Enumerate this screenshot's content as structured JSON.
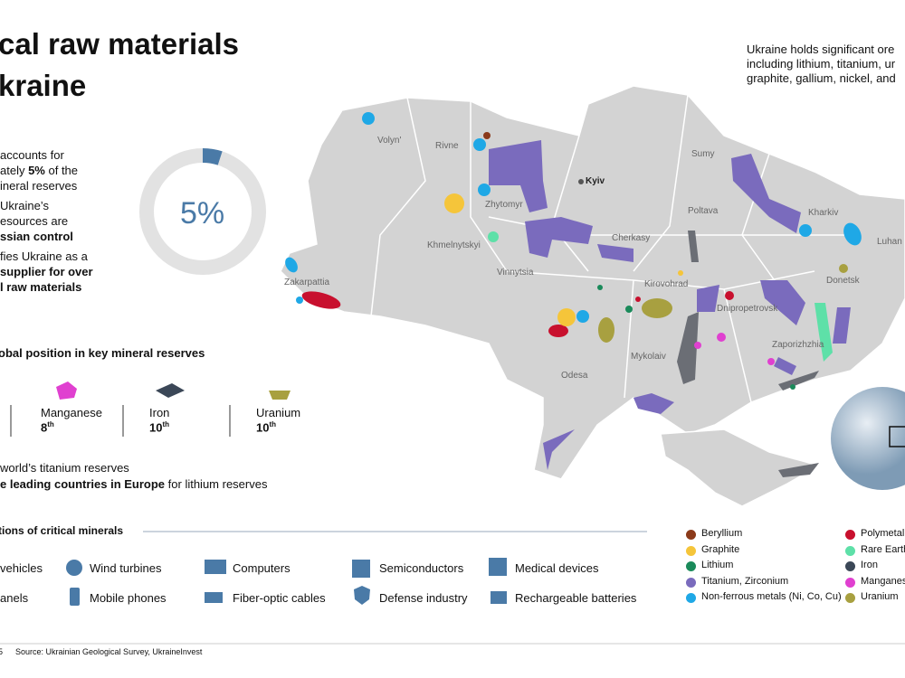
{
  "header": {
    "title_lines": [
      "cal raw materials",
      "kraine"
    ]
  },
  "bullets": [
    {
      "lines": [
        [
          {
            "text": "accounts for",
            "bold": false
          }
        ],
        [
          {
            "text": "ately ",
            "bold": false
          },
          {
            "text": "5%",
            "bold": true
          },
          {
            "text": " of the",
            "bold": false
          }
        ],
        [
          {
            "text": "ineral reserves",
            "bold": false
          }
        ]
      ]
    },
    {
      "lines": [
        [
          {
            "text": "Ukraine’s",
            "bold": false
          }
        ],
        [
          {
            "text": "esources are",
            "bold": false
          }
        ],
        [
          {
            "text": "ssian control",
            "bold": true
          }
        ]
      ]
    },
    {
      "lines": [
        [
          {
            "text": "fies Ukraine as a",
            "bold": false
          }
        ],
        [
          {
            "text": "supplier for over",
            "bold": true
          }
        ],
        [
          {
            "text": "l raw materials",
            "bold": true
          }
        ]
      ]
    }
  ],
  "donut": {
    "value": 5,
    "max": 100,
    "label": "5%",
    "color": "#4a7aa7"
  },
  "intro_lines": [
    "Ukraine holds significant ore",
    "including lithium, titanium, ur",
    "graphite, gallium, nickel, and"
  ],
  "map_labels": [
    "Volyn'",
    "Rivne",
    "Zhytomyr",
    "Kyiv",
    "Sumy",
    "Poltava",
    "Kharkiv",
    "Luhan",
    "Cherkasy",
    "Khmelnytskyi",
    "Vinnytsia",
    "Kirovohrad",
    "Dnipropetrovsk",
    "Donetsk",
    "Zakarpattia",
    "Zaporizhzhia",
    "Mykolaiv",
    "Odesa"
  ],
  "position": {
    "title": "obal position in key mineral reserves",
    "items": [
      {
        "name": "Manganese",
        "rank": "8",
        "suffix": "th"
      },
      {
        "name": "Iron",
        "rank": "10",
        "suffix": "th"
      },
      {
        "name": "Uranium",
        "rank": "10",
        "suffix": "th"
      }
    ]
  },
  "facts": [
    [
      {
        "text": "world’s titanium reserves",
        "bold": false
      }
    ],
    [
      {
        "text": "e leading countries in Europe",
        "bold": true
      },
      {
        "text": " for lithium reserves",
        "bold": false
      }
    ]
  ],
  "applications": {
    "title": "tions of critical minerals",
    "items": [
      "vehicles",
      "Wind turbines",
      "Computers",
      "Semiconductors",
      "Medical devices",
      "anels",
      "Mobile phones",
      "Fiber-optic cables",
      "Defense industry",
      "Rechargeable batteries"
    ]
  },
  "legend": [
    {
      "name": "Beryllium",
      "color": "#8b3a1a"
    },
    {
      "name": "Graphite",
      "color": "#f5c53a"
    },
    {
      "name": "Lithium",
      "color": "#1a8a5a"
    },
    {
      "name": "Titanium, Zirconium",
      "color": "#7a6bbd"
    },
    {
      "name": "Non-ferrous metals (Ni, Co, Cu)",
      "color": "#1fa8e6"
    },
    {
      "name": "Polymetal",
      "color": "#c8102e"
    },
    {
      "name": "Rare Earth",
      "color": "#5ee0a8"
    },
    {
      "name": "Iron",
      "color": "#3b4757"
    },
    {
      "name": "Manganes",
      "color": "#e040d0"
    },
    {
      "name": "Uranium",
      "color": "#a8a040"
    }
  ],
  "footer": {
    "page": "5",
    "source": "Source: Ukrainian Geological Survey, UkraineInvest"
  }
}
